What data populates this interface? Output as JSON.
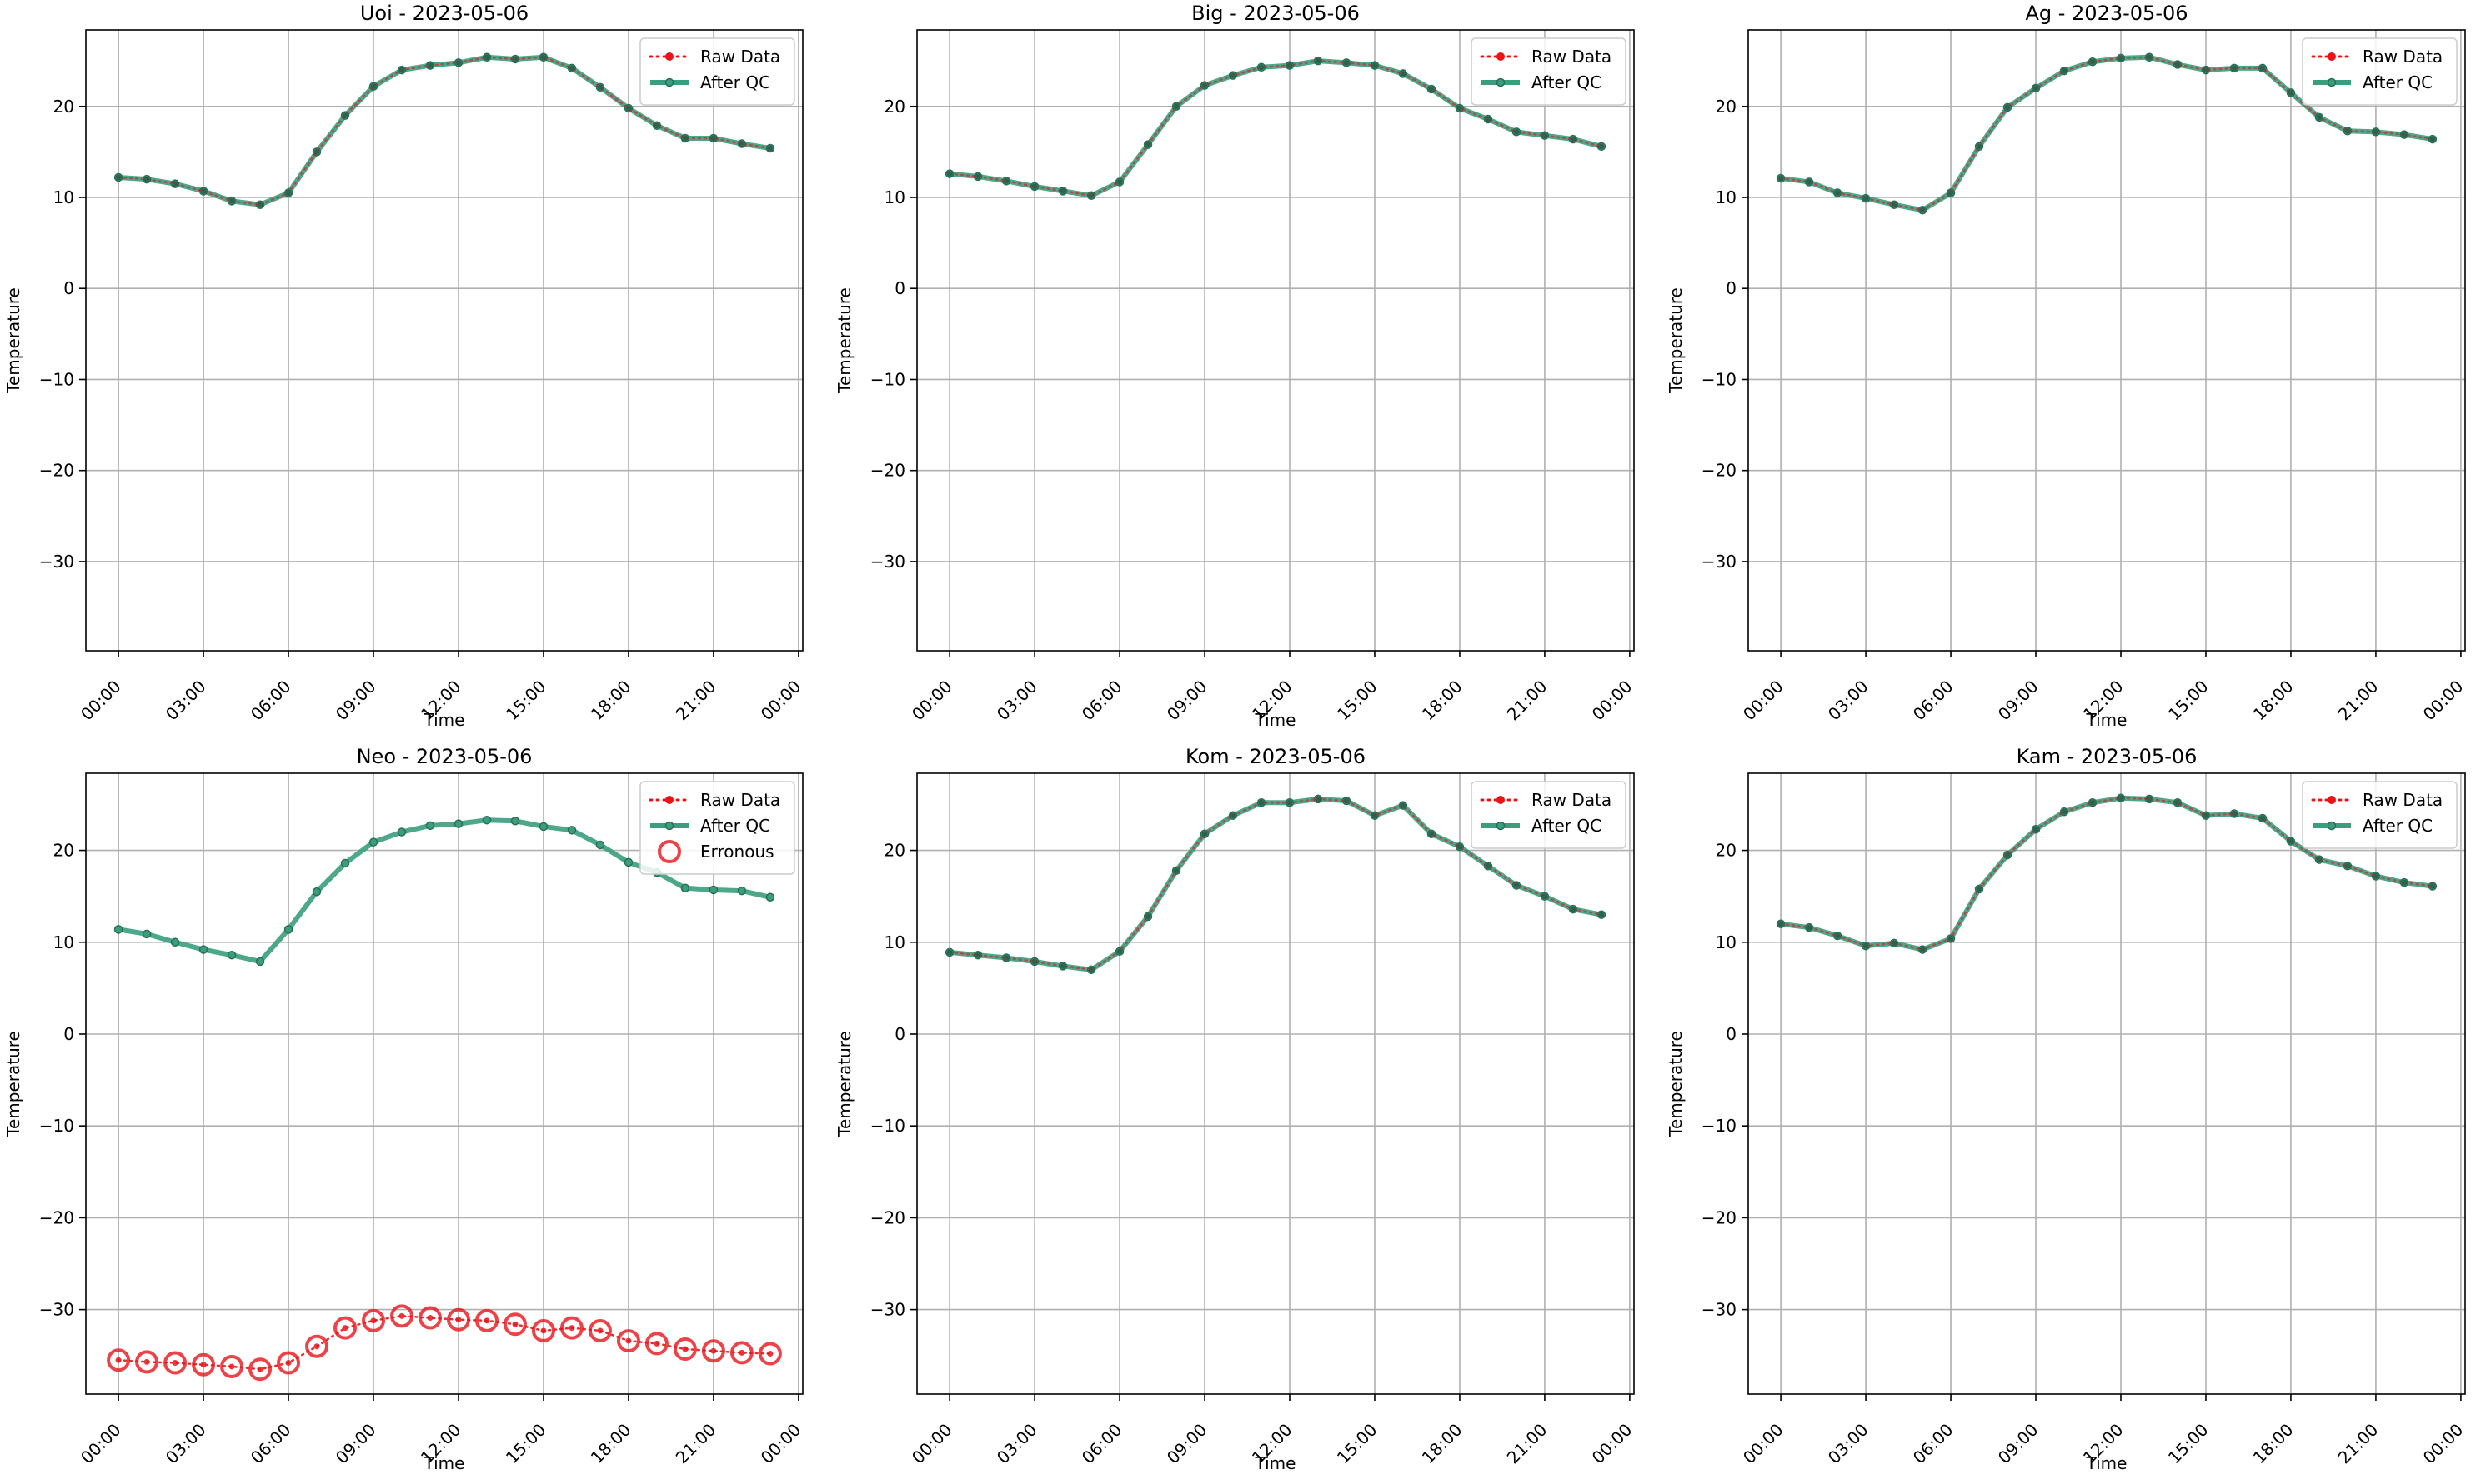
{
  "figure": {
    "background": "#ffffff"
  },
  "style": {
    "raw_color": "#e8141a",
    "qc_color": "#3a9e7e",
    "qc_marker_color": "#2a6f58",
    "err_color": "#e8141a",
    "grid_color": "#b0b0b0"
  },
  "legend_labels": {
    "raw": "Raw Data",
    "qc": "After QC",
    "err": "Erronous"
  },
  "chart_data": [
    {
      "type": "line",
      "title": "Uoi - 2023-05-06",
      "xlabel": "Time",
      "ylabel": "Temperature",
      "xlim": [
        -1.15,
        24.15
      ],
      "ylim": [
        -39.8,
        28.4
      ],
      "x_ticks": [
        0,
        3,
        6,
        9,
        12,
        15,
        18,
        21,
        24
      ],
      "x_tick_labels": [
        "00:00",
        "03:00",
        "06:00",
        "09:00",
        "12:00",
        "15:00",
        "18:00",
        "21:00",
        "00:00"
      ],
      "y_ticks": [
        -30,
        -20,
        -10,
        0,
        10,
        20
      ],
      "y_tick_labels": [
        "−30",
        "−20",
        "−10",
        "0",
        "10",
        "20"
      ],
      "grid": true,
      "legend_position": "upper right",
      "x": [
        0,
        1,
        2,
        3,
        4,
        5,
        6,
        7,
        8,
        9,
        10,
        11,
        12,
        13,
        14,
        15,
        16,
        17,
        18,
        19,
        20,
        21,
        22,
        23
      ],
      "series": [
        {
          "name": "Raw Data",
          "values": [
            12.2,
            12.0,
            11.5,
            10.7,
            9.6,
            9.2,
            10.5,
            15.0,
            19.0,
            22.2,
            24.0,
            24.5,
            24.8,
            25.4,
            25.2,
            25.4,
            24.2,
            22.1,
            19.8,
            17.9,
            16.5,
            16.5,
            15.9,
            15.4
          ]
        },
        {
          "name": "After QC",
          "values": [
            12.2,
            12.0,
            11.5,
            10.7,
            9.6,
            9.2,
            10.5,
            15.0,
            19.0,
            22.2,
            24.0,
            24.5,
            24.8,
            25.4,
            25.2,
            25.4,
            24.2,
            22.1,
            19.8,
            17.9,
            16.5,
            16.5,
            15.9,
            15.4
          ]
        }
      ]
    },
    {
      "type": "line",
      "title": "Big - 2023-05-06",
      "xlabel": "Time",
      "ylabel": "Temperature",
      "xlim": [
        -1.15,
        24.15
      ],
      "ylim": [
        -39.8,
        28.4
      ],
      "x_ticks": [
        0,
        3,
        6,
        9,
        12,
        15,
        18,
        21,
        24
      ],
      "x_tick_labels": [
        "00:00",
        "03:00",
        "06:00",
        "09:00",
        "12:00",
        "15:00",
        "18:00",
        "21:00",
        "00:00"
      ],
      "y_ticks": [
        -30,
        -20,
        -10,
        0,
        10,
        20
      ],
      "y_tick_labels": [
        "−30",
        "−20",
        "−10",
        "0",
        "10",
        "20"
      ],
      "grid": true,
      "legend_position": "upper right",
      "x": [
        0,
        1,
        2,
        3,
        4,
        5,
        6,
        7,
        8,
        9,
        10,
        11,
        12,
        13,
        14,
        15,
        16,
        17,
        18,
        19,
        20,
        21,
        22,
        23
      ],
      "series": [
        {
          "name": "Raw Data",
          "values": [
            12.6,
            12.3,
            11.8,
            11.2,
            10.7,
            10.2,
            11.7,
            15.8,
            20.0,
            22.3,
            23.4,
            24.3,
            24.5,
            25.0,
            24.8,
            24.5,
            23.6,
            21.9,
            19.8,
            18.6,
            17.2,
            16.8,
            16.4,
            15.6
          ]
        },
        {
          "name": "After QC",
          "values": [
            12.6,
            12.3,
            11.8,
            11.2,
            10.7,
            10.2,
            11.7,
            15.8,
            20.0,
            22.3,
            23.4,
            24.3,
            24.5,
            25.0,
            24.8,
            24.5,
            23.6,
            21.9,
            19.8,
            18.6,
            17.2,
            16.8,
            16.4,
            15.6
          ]
        }
      ]
    },
    {
      "type": "line",
      "title": "Ag - 2023-05-06",
      "xlabel": "Time",
      "ylabel": "Temperature",
      "xlim": [
        -1.15,
        24.15
      ],
      "ylim": [
        -39.8,
        28.4
      ],
      "x_ticks": [
        0,
        3,
        6,
        9,
        12,
        15,
        18,
        21,
        24
      ],
      "x_tick_labels": [
        "00:00",
        "03:00",
        "06:00",
        "09:00",
        "12:00",
        "15:00",
        "18:00",
        "21:00",
        "00:00"
      ],
      "y_ticks": [
        -30,
        -20,
        -10,
        0,
        10,
        20
      ],
      "y_tick_labels": [
        "−30",
        "−20",
        "−10",
        "0",
        "10",
        "20"
      ],
      "grid": true,
      "legend_position": "upper right",
      "x": [
        0,
        1,
        2,
        3,
        4,
        5,
        6,
        7,
        8,
        9,
        10,
        11,
        12,
        13,
        14,
        15,
        16,
        17,
        18,
        19,
        20,
        21,
        22,
        23
      ],
      "series": [
        {
          "name": "Raw Data",
          "values": [
            12.1,
            11.7,
            10.5,
            9.9,
            9.2,
            8.6,
            10.5,
            15.6,
            19.9,
            22.0,
            23.9,
            24.9,
            25.3,
            25.4,
            24.6,
            24.0,
            24.2,
            24.2,
            21.5,
            18.8,
            17.3,
            17.2,
            16.9,
            16.4
          ]
        },
        {
          "name": "After QC",
          "values": [
            12.1,
            11.7,
            10.5,
            9.9,
            9.2,
            8.6,
            10.5,
            15.6,
            19.9,
            22.0,
            23.9,
            24.9,
            25.3,
            25.4,
            24.6,
            24.0,
            24.2,
            24.2,
            21.5,
            18.8,
            17.3,
            17.2,
            16.9,
            16.4
          ]
        }
      ]
    },
    {
      "type": "line",
      "title": "Neo - 2023-05-06",
      "xlabel": "Time",
      "ylabel": "Temperature",
      "xlim": [
        -1.15,
        24.15
      ],
      "ylim": [
        -39.2,
        28.4
      ],
      "x_ticks": [
        0,
        3,
        6,
        9,
        12,
        15,
        18,
        21,
        24
      ],
      "x_tick_labels": [
        "00:00",
        "03:00",
        "06:00",
        "09:00",
        "12:00",
        "15:00",
        "18:00",
        "21:00",
        "00:00"
      ],
      "y_ticks": [
        -30,
        -20,
        -10,
        0,
        10,
        20
      ],
      "y_tick_labels": [
        "−30",
        "−20",
        "−10",
        "0",
        "10",
        "20"
      ],
      "grid": true,
      "legend_position": "upper right",
      "x": [
        0,
        1,
        2,
        3,
        4,
        5,
        6,
        7,
        8,
        9,
        10,
        11,
        12,
        13,
        14,
        15,
        16,
        17,
        18,
        19,
        20,
        21,
        22,
        23
      ],
      "series": [
        {
          "name": "Raw Data",
          "values": [
            -35.5,
            -35.7,
            -35.8,
            -36.0,
            -36.2,
            -36.5,
            -35.8,
            -34.0,
            -32.0,
            -31.2,
            -30.7,
            -30.9,
            -31.1,
            -31.2,
            -31.6,
            -32.3,
            -32.0,
            -32.3,
            -33.4,
            -33.7,
            -34.3,
            -34.5,
            -34.7,
            -34.8
          ]
        },
        {
          "name": "After QC",
          "values": [
            11.4,
            10.9,
            10.0,
            9.2,
            8.6,
            7.9,
            11.4,
            15.5,
            18.6,
            20.9,
            22.0,
            22.7,
            22.9,
            23.3,
            23.2,
            22.6,
            22.2,
            20.6,
            18.7,
            17.6,
            15.9,
            15.7,
            15.6,
            14.9
          ]
        },
        {
          "name": "Erronous",
          "values": [
            -35.5,
            -35.7,
            -35.8,
            -36.0,
            -36.2,
            -36.5,
            -35.8,
            -34.0,
            -32.0,
            -31.2,
            -30.7,
            -30.9,
            -31.1,
            -31.2,
            -31.6,
            -32.3,
            -32.0,
            -32.3,
            -33.4,
            -33.7,
            -34.3,
            -34.5,
            -34.7,
            -34.8
          ]
        }
      ]
    },
    {
      "type": "line",
      "title": "Kom - 2023-05-06",
      "xlabel": "Time",
      "ylabel": "Temperature",
      "xlim": [
        -1.15,
        24.15
      ],
      "ylim": [
        -39.2,
        28.4
      ],
      "x_ticks": [
        0,
        3,
        6,
        9,
        12,
        15,
        18,
        21,
        24
      ],
      "x_tick_labels": [
        "00:00",
        "03:00",
        "06:00",
        "09:00",
        "12:00",
        "15:00",
        "18:00",
        "21:00",
        "00:00"
      ],
      "y_ticks": [
        -30,
        -20,
        -10,
        0,
        10,
        20
      ],
      "y_tick_labels": [
        "−30",
        "−20",
        "−10",
        "0",
        "10",
        "20"
      ],
      "grid": true,
      "legend_position": "upper right",
      "x": [
        0,
        1,
        2,
        3,
        4,
        5,
        6,
        7,
        8,
        9,
        10,
        11,
        12,
        13,
        14,
        15,
        16,
        17,
        18,
        19,
        20,
        21,
        22,
        23
      ],
      "series": [
        {
          "name": "Raw Data",
          "values": [
            8.9,
            8.6,
            8.3,
            7.9,
            7.4,
            7.0,
            9.0,
            12.8,
            17.8,
            21.8,
            23.8,
            25.2,
            25.2,
            25.6,
            25.4,
            23.8,
            24.9,
            21.8,
            20.4,
            18.3,
            16.2,
            15.0,
            13.6,
            13.0
          ]
        },
        {
          "name": "After QC",
          "values": [
            8.9,
            8.6,
            8.3,
            7.9,
            7.4,
            7.0,
            9.0,
            12.8,
            17.8,
            21.8,
            23.8,
            25.2,
            25.2,
            25.6,
            25.4,
            23.8,
            24.9,
            21.8,
            20.4,
            18.3,
            16.2,
            15.0,
            13.6,
            13.0
          ]
        }
      ]
    },
    {
      "type": "line",
      "title": "Kam - 2023-05-06",
      "xlabel": "Time",
      "ylabel": "Temperature",
      "xlim": [
        -1.15,
        24.15
      ],
      "ylim": [
        -39.2,
        28.4
      ],
      "x_ticks": [
        0,
        3,
        6,
        9,
        12,
        15,
        18,
        21,
        24
      ],
      "x_tick_labels": [
        "00:00",
        "03:00",
        "06:00",
        "09:00",
        "12:00",
        "15:00",
        "18:00",
        "21:00",
        "00:00"
      ],
      "y_ticks": [
        -30,
        -20,
        -10,
        0,
        10,
        20
      ],
      "y_tick_labels": [
        "−30",
        "−20",
        "−10",
        "0",
        "10",
        "20"
      ],
      "grid": true,
      "legend_position": "upper right",
      "x": [
        0,
        1,
        2,
        3,
        4,
        5,
        6,
        7,
        8,
        9,
        10,
        11,
        12,
        13,
        14,
        15,
        16,
        17,
        18,
        19,
        20,
        21,
        22,
        23
      ],
      "series": [
        {
          "name": "Raw Data",
          "values": [
            12.0,
            11.6,
            10.7,
            9.6,
            9.9,
            9.2,
            10.4,
            15.8,
            19.5,
            22.3,
            24.2,
            25.2,
            25.7,
            25.6,
            25.2,
            23.8,
            24.0,
            23.5,
            21.0,
            19.0,
            18.3,
            17.2,
            16.5,
            16.1
          ]
        },
        {
          "name": "After QC",
          "values": [
            12.0,
            11.6,
            10.7,
            9.6,
            9.9,
            9.2,
            10.4,
            15.8,
            19.5,
            22.3,
            24.2,
            25.2,
            25.7,
            25.6,
            25.2,
            23.8,
            24.0,
            23.5,
            21.0,
            19.0,
            18.3,
            17.2,
            16.5,
            16.1
          ]
        }
      ]
    }
  ]
}
